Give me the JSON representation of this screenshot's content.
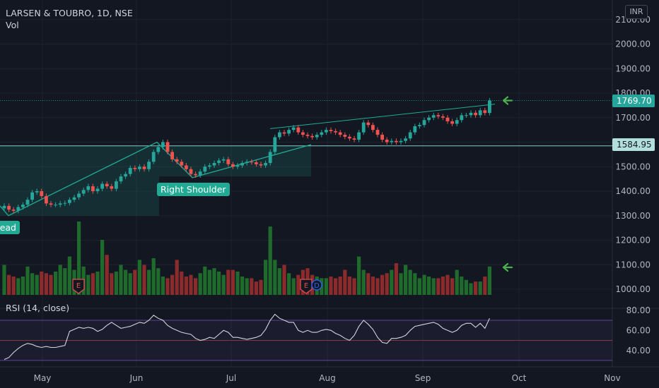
{
  "header": {
    "symbol_line": "LARSEN & TOUBRO, 1D, NSE",
    "volume_label": "Vol"
  },
  "currency": "INR",
  "rsi_label": "RSI (14, close)",
  "annotations": {
    "right_shoulder": "Right Shoulder",
    "head_partial": "Head"
  },
  "price_badges": {
    "last": "1769.70",
    "neckline": "1584.95"
  },
  "colors": {
    "up": "#26a69a",
    "down": "#ef5350",
    "vol_up": "#1f6b2c",
    "vol_down": "#8b2b2b",
    "pattern": "#22ab94",
    "rsi_line": "#d1d4dc",
    "rsi_band": "#7e57c2",
    "arrow": "#4caf50",
    "bg": "#131722"
  },
  "chart_data": [
    {
      "type": "candlestick",
      "title": "LARSEN & TOUBRO, 1D, NSE",
      "ylabel": "INR",
      "x_labels": [
        "May",
        "Jun",
        "Jul",
        "Aug",
        "Sep",
        "Oct",
        "Nov"
      ],
      "y_ticks": [
        1000,
        1100,
        1200,
        1300,
        1400,
        1500,
        1600,
        1700,
        1800,
        1900,
        2000,
        2100
      ],
      "y_tick_labels": [
        "1000.00",
        "1100.00",
        "1200.00",
        "1300.00",
        "1400.00",
        "1500.00",
        "1600.00",
        "1700.00",
        "1800.00",
        "1900.00",
        "2000.00",
        "2100.00"
      ],
      "ylim": [
        965,
        2150
      ],
      "last_price": 1769.7,
      "neckline_price": 1584.95,
      "closes": [
        1340,
        1325,
        1320,
        1335,
        1345,
        1365,
        1395,
        1400,
        1380,
        1350,
        1345,
        1345,
        1350,
        1352,
        1365,
        1375,
        1390,
        1405,
        1420,
        1400,
        1410,
        1430,
        1420,
        1410,
        1440,
        1460,
        1470,
        1495,
        1490,
        1500,
        1490,
        1520,
        1560,
        1580,
        1600,
        1560,
        1530,
        1520,
        1505,
        1490,
        1470,
        1465,
        1480,
        1500,
        1505,
        1515,
        1525,
        1530,
        1510,
        1500,
        1505,
        1515,
        1520,
        1518,
        1510,
        1505,
        1515,
        1560,
        1620,
        1640,
        1635,
        1650,
        1660,
        1640,
        1630,
        1625,
        1620,
        1630,
        1640,
        1650,
        1645,
        1640,
        1630,
        1622,
        1615,
        1610,
        1640,
        1680,
        1670,
        1650,
        1630,
        1610,
        1600,
        1605,
        1600,
        1605,
        1615,
        1640,
        1665,
        1670,
        1690,
        1700,
        1710,
        1705,
        1700,
        1685,
        1675,
        1690,
        1710,
        1710,
        1720,
        1710,
        1730,
        1719,
        1770
      ],
      "volumes": [
        0.9,
        0.6,
        0.55,
        0.5,
        0.55,
        0.85,
        0.65,
        0.6,
        0.7,
        0.65,
        0.6,
        0.7,
        0.9,
        0.8,
        1.15,
        0.75,
        2.2,
        0.85,
        0.6,
        0.65,
        0.7,
        1.65,
        1.2,
        0.65,
        0.7,
        0.9,
        0.75,
        0.65,
        0.75,
        1.05,
        0.9,
        0.75,
        1.1,
        0.8,
        0.55,
        0.5,
        0.6,
        1.05,
        0.7,
        0.55,
        0.6,
        0.5,
        0.65,
        0.85,
        0.75,
        0.8,
        0.7,
        0.6,
        0.75,
        0.75,
        0.7,
        0.55,
        0.5,
        0.5,
        0.4,
        0.45,
        1.05,
        2.05,
        1.05,
        0.8,
        0.9,
        0.65,
        0.5,
        0.6,
        0.75,
        0.8,
        0.6,
        0.55,
        0.5,
        0.5,
        0.55,
        0.5,
        0.55,
        0.75,
        0.55,
        0.5,
        1.15,
        0.75,
        0.65,
        0.55,
        0.5,
        0.6,
        0.65,
        0.75,
        0.95,
        0.65,
        0.9,
        0.75,
        0.65,
        0.5,
        0.6,
        0.55,
        0.5,
        0.5,
        0.55,
        0.6,
        0.5,
        0.75,
        0.55,
        0.45,
        0.35,
        0.4,
        0.4,
        0.55,
        0.85
      ],
      "earnings_events": [
        "E",
        "E"
      ],
      "extra_marker": "D"
    },
    {
      "type": "line",
      "title": "RSI (14, close)",
      "y_ticks": [
        40,
        60,
        80
      ],
      "y_tick_labels": [
        "40.00",
        "60.00",
        "80.00"
      ],
      "ylim": [
        30,
        85
      ],
      "bands": [
        30,
        50,
        70
      ],
      "values": [
        31,
        33,
        38,
        42,
        45,
        47,
        46,
        44,
        43,
        44,
        43,
        43,
        44,
        45,
        59,
        61,
        63,
        62,
        63,
        62,
        59,
        61,
        65,
        68,
        65,
        62,
        63,
        64,
        66,
        68,
        67,
        70,
        75,
        72,
        70,
        65,
        62,
        60,
        58,
        57,
        56,
        52,
        50,
        51,
        53,
        52,
        56,
        60,
        58,
        53,
        53,
        52,
        51,
        52,
        53,
        55,
        61,
        70,
        76,
        72,
        70,
        68,
        68,
        60,
        58,
        60,
        58,
        58,
        60,
        61,
        60,
        57,
        55,
        52,
        50,
        55,
        64,
        70,
        66,
        61,
        53,
        48,
        47,
        52,
        52,
        53,
        55,
        60,
        64,
        65,
        66,
        67,
        68,
        66,
        62,
        60,
        58,
        60,
        65,
        67,
        67,
        63,
        67,
        62,
        72
      ]
    }
  ]
}
